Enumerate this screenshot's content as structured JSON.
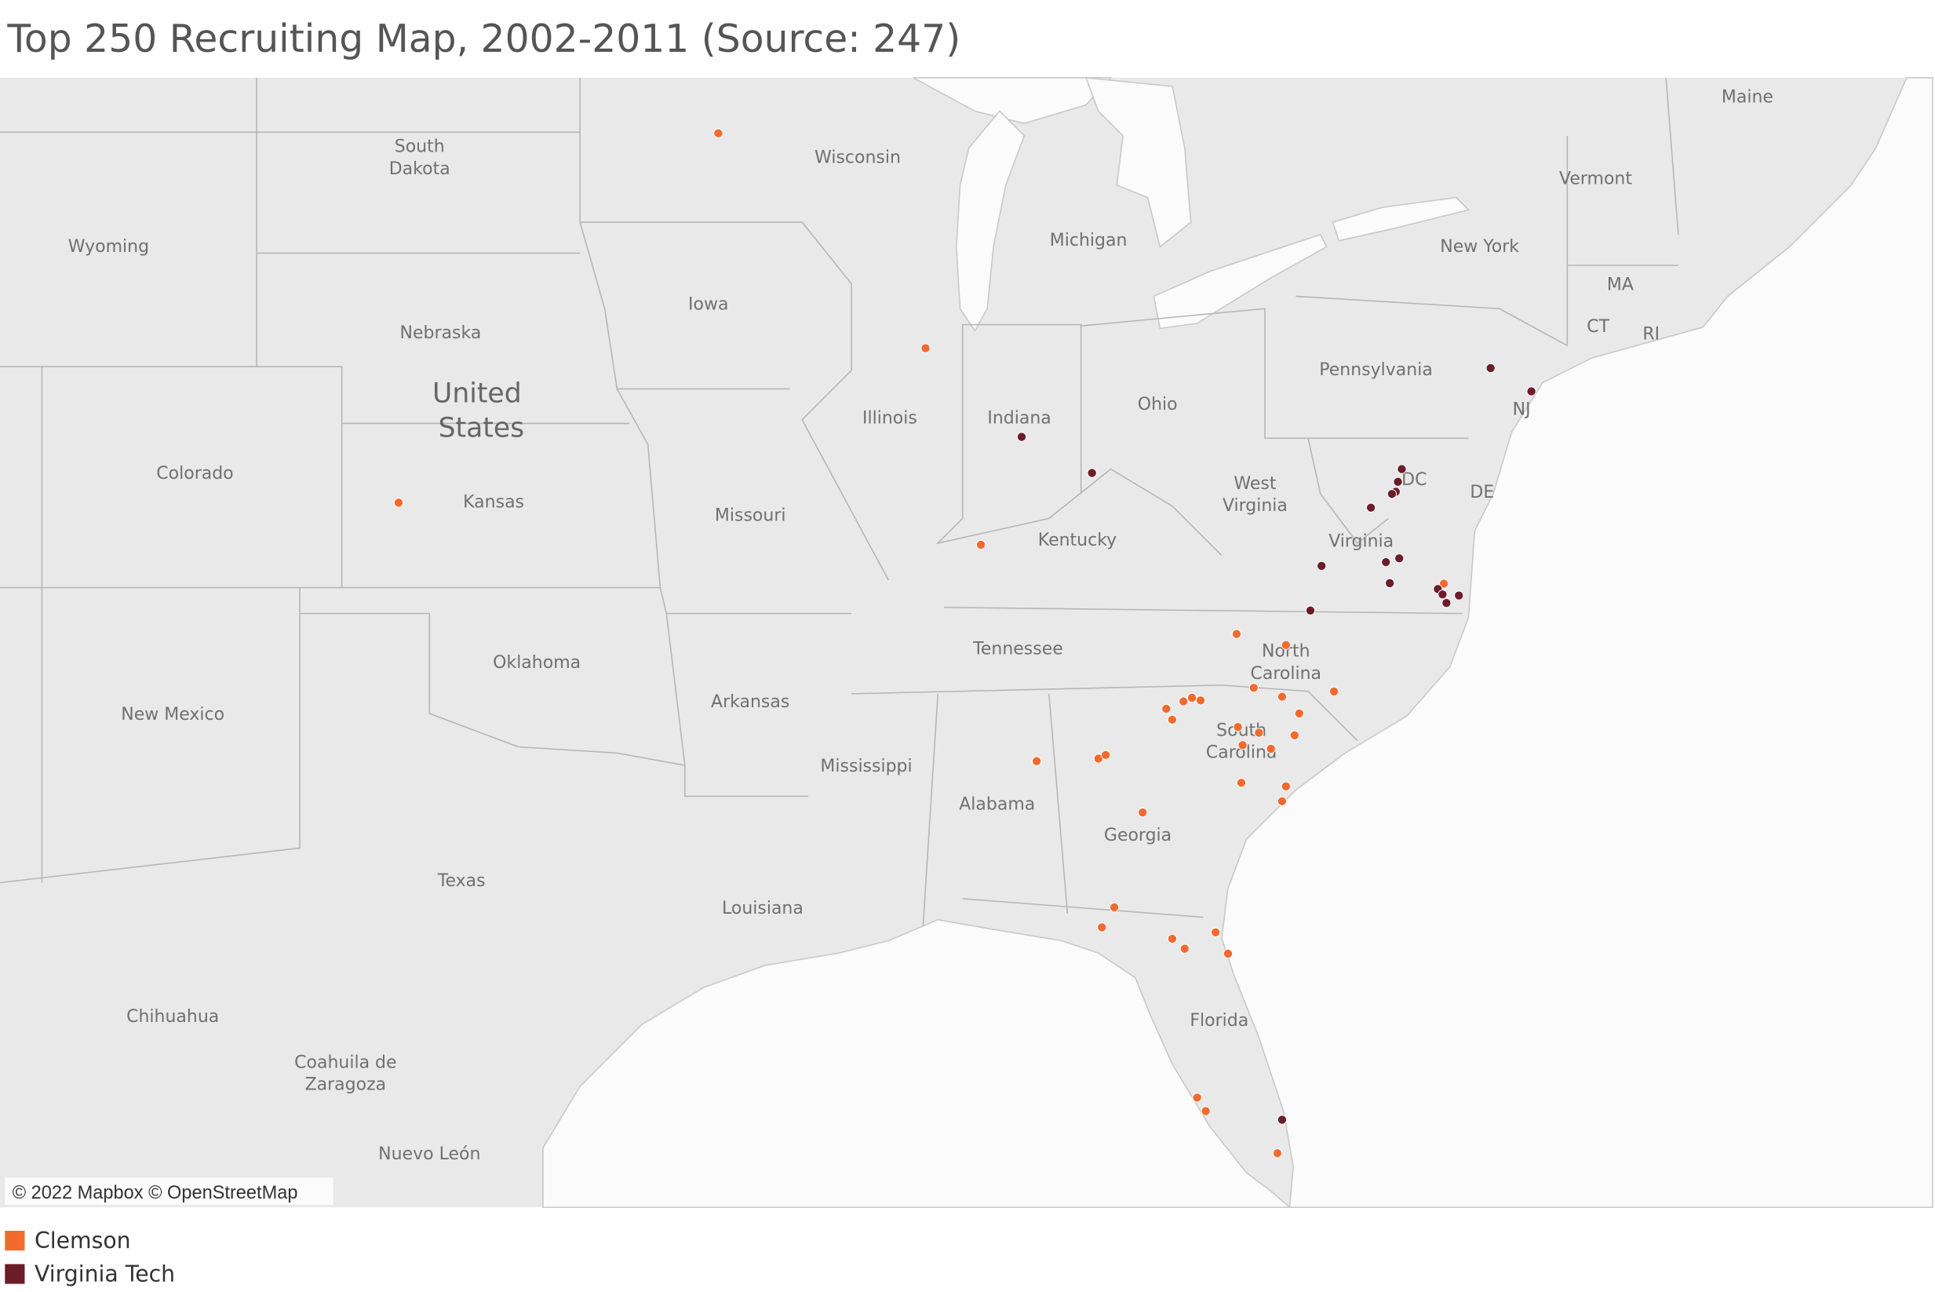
{
  "header": {
    "title": "Top 250 Recruiting Map, 2002-2011 (Source: 247)"
  },
  "map": {
    "labels": [
      [
        "Wyoming"
      ],
      [
        "South",
        "Dakota"
      ],
      [
        "Wisconsin"
      ],
      [
        "Michigan"
      ],
      [
        "Maine"
      ],
      [
        "Vermont"
      ],
      [
        "New York"
      ],
      [
        "MA"
      ],
      [
        "CT"
      ],
      [
        "RI"
      ],
      [
        "Iowa"
      ],
      [
        "Nebraska"
      ],
      [
        "Pennsylvania"
      ],
      [
        "NJ"
      ],
      [
        "Illinois"
      ],
      [
        "Indiana"
      ],
      [
        "Ohio"
      ],
      [
        "Colorado"
      ],
      [
        "Kansas"
      ],
      [
        "Missouri"
      ],
      [
        "West",
        "Virginia"
      ],
      [
        "DC"
      ],
      [
        "DE"
      ],
      [
        "Virginia"
      ],
      [
        "Kentucky"
      ],
      [
        "Tennessee"
      ],
      [
        "North",
        "Carolina"
      ],
      [
        "Oklahoma"
      ],
      [
        "Arkansas"
      ],
      [
        "New Mexico"
      ],
      [
        "South",
        "Carolina"
      ],
      [
        "Mississippi"
      ],
      [
        "Alabama"
      ],
      [
        "Georgia"
      ],
      [
        "Texas"
      ],
      [
        "Louisiana"
      ],
      [
        "Florida"
      ],
      [
        "Chihuahua"
      ],
      [
        "Coahuila de",
        "Zaragoza"
      ],
      [
        "Nuevo León"
      ]
    ],
    "country_label": [
      "United",
      "States"
    ],
    "attribution": "© 2022 Mapbox © OpenStreetMap"
  },
  "chart_data": {
    "type": "map",
    "series": [
      {
        "name": "Clemson",
        "color": "#f26a2e",
        "lon": [
          -93.27,
          -88.44,
          -100.72,
          -87.15,
          -81.19,
          -80.04,
          -80.79,
          -78.92,
          -80.13,
          -82.83,
          -82.43,
          -82.23,
          -82.03,
          -82.69,
          -79.73,
          -81.16,
          -80.67,
          -81.05,
          -80.39,
          -79.84,
          -84.41,
          -84.24,
          -85.85,
          -81.08,
          -80.04,
          -80.13,
          -83.38,
          -84.04,
          -84.33,
          -82.69,
          -82.4,
          -81.68,
          -81.39,
          -82.11,
          -81.91,
          -80.24,
          -76.36
        ],
        "lat": [
          44.98,
          41.33,
          38.57,
          37.8,
          36.14,
          35.93,
          35.12,
          35.05,
          34.95,
          34.72,
          34.86,
          34.93,
          34.88,
          34.51,
          34.63,
          34.37,
          34.26,
          34.02,
          33.95,
          34.21,
          33.76,
          33.83,
          33.71,
          33.29,
          33.22,
          32.93,
          32.71,
          30.83,
          30.43,
          30.2,
          30.0,
          30.33,
          29.9,
          26.95,
          26.67,
          25.79,
          37.08
        ]
      },
      {
        "name": "Virginia Tech",
        "color": "#6b1d2a",
        "lon": [
          -75.27,
          -74.32,
          -86.2,
          -84.56,
          -77.34,
          -77.43,
          -77.48,
          -77.57,
          -78.06,
          -79.21,
          -77.71,
          -77.4,
          -77.62,
          -76.5,
          -76.39,
          -76.01,
          -76.3,
          -79.47,
          -80.13
        ],
        "lat": [
          40.98,
          40.57,
          39.76,
          39.11,
          39.18,
          38.95,
          38.77,
          38.73,
          38.48,
          37.41,
          37.48,
          37.55,
          37.09,
          36.98,
          36.88,
          36.86,
          36.72,
          36.58,
          26.49
        ]
      }
    ]
  }
}
